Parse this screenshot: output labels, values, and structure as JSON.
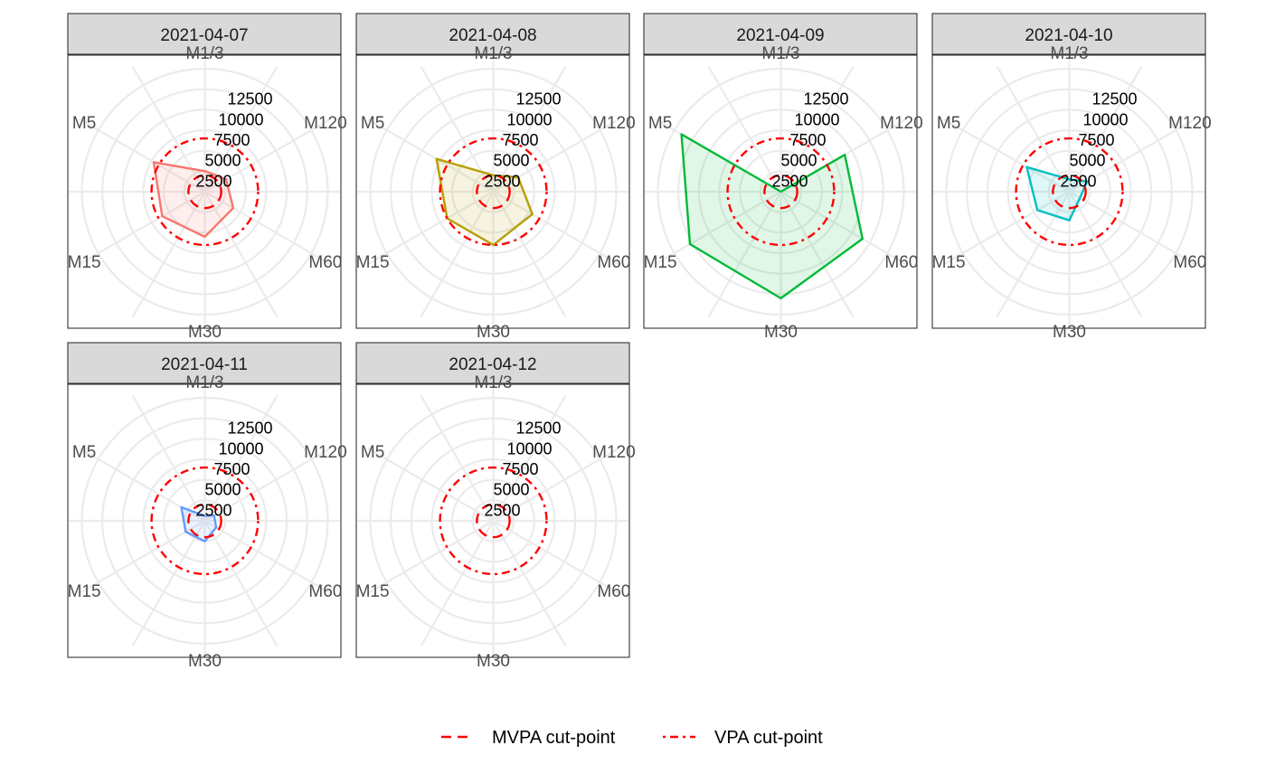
{
  "chart_data": {
    "type": "radar",
    "axes": [
      "M1/3",
      "M120",
      "M60",
      "M30",
      "M15",
      "M5"
    ],
    "radial_ticks": [
      2500,
      5000,
      7500,
      10000,
      12500
    ],
    "radial_labels": [
      "2500",
      "5000",
      "7500",
      "10000",
      "12500"
    ],
    "rlim": [
      0,
      15000
    ],
    "grid": true,
    "legend_position": "bottom",
    "legend": [
      {
        "label": "MVPA cut-point",
        "linetype": "dashed",
        "color": "#ff0000"
      },
      {
        "label": "VPA cut-point",
        "linetype": "dotdash",
        "color": "#ff0000"
      }
    ],
    "cutpoints": {
      "mvpa": 2000,
      "vpa": 6500
    },
    "panels": [
      {
        "title": "2021-04-07",
        "color": "#f8766d",
        "values": [
          2500,
          3000,
          4000,
          5500,
          6000,
          7200
        ]
      },
      {
        "title": "2021-04-08",
        "color": "#b79f00",
        "values": [
          2000,
          3500,
          5500,
          6500,
          6500,
          8000
        ]
      },
      {
        "title": "2021-04-09",
        "color": "#00ba38",
        "values": [
          0,
          9000,
          11500,
          13000,
          12800,
          14000
        ]
      },
      {
        "title": "2021-04-10",
        "color": "#00bfc4",
        "values": [
          1500,
          2500,
          1500,
          3500,
          4500,
          6000
        ]
      },
      {
        "title": "2021-04-11",
        "color": "#619cff",
        "values": [
          600,
          1300,
          1600,
          2500,
          2700,
          3300
        ]
      },
      {
        "title": "2021-04-12",
        "color": "#f564e3",
        "values": [
          0,
          0,
          0,
          0,
          0,
          0
        ]
      }
    ]
  }
}
